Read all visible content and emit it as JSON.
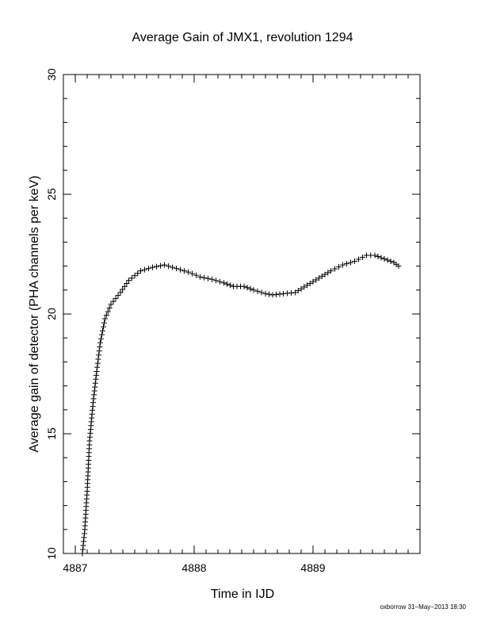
{
  "chart_data": {
    "type": "scatter",
    "title": "Average Gain of JMX1, revolution 1294",
    "xlabel": "Time in IJD",
    "ylabel": "Average gain of detector (PHA channels per keV)",
    "xlim": [
      4886.9,
      4889.9
    ],
    "ylim": [
      10,
      30
    ],
    "xticks": [
      4887,
      4888,
      4889
    ],
    "yticks": [
      10,
      15,
      20,
      25,
      30
    ],
    "marker": "plus",
    "grid": false,
    "series": [
      {
        "points": [
          [
            4887.06,
            10.0
          ],
          [
            4887.08,
            11.0
          ],
          [
            4887.1,
            12.6
          ],
          [
            4887.12,
            14.7
          ],
          [
            4887.15,
            16.3
          ],
          [
            4887.18,
            17.6
          ],
          [
            4887.21,
            18.8
          ],
          [
            4887.25,
            19.8
          ],
          [
            4887.3,
            20.4
          ],
          [
            4887.38,
            20.9
          ],
          [
            4887.45,
            21.4
          ],
          [
            4887.55,
            21.8
          ],
          [
            4887.65,
            21.95
          ],
          [
            4887.75,
            22.05
          ],
          [
            4887.85,
            21.9
          ],
          [
            4887.95,
            21.75
          ],
          [
            4888.05,
            21.55
          ],
          [
            4888.15,
            21.45
          ],
          [
            4888.25,
            21.3
          ],
          [
            4888.33,
            21.15
          ],
          [
            4888.42,
            21.15
          ],
          [
            4888.5,
            21.0
          ],
          [
            4888.6,
            20.85
          ],
          [
            4888.66,
            20.8
          ],
          [
            4888.75,
            20.85
          ],
          [
            4888.85,
            20.9
          ],
          [
            4888.95,
            21.2
          ],
          [
            4889.05,
            21.5
          ],
          [
            4889.15,
            21.8
          ],
          [
            4889.25,
            22.05
          ],
          [
            4889.35,
            22.2
          ],
          [
            4889.45,
            22.45
          ],
          [
            4889.52,
            22.45
          ],
          [
            4889.6,
            22.3
          ],
          [
            4889.68,
            22.15
          ],
          [
            4889.72,
            22.0
          ]
        ]
      }
    ],
    "footer": "oxborrow 31−May−2013 18:30"
  }
}
